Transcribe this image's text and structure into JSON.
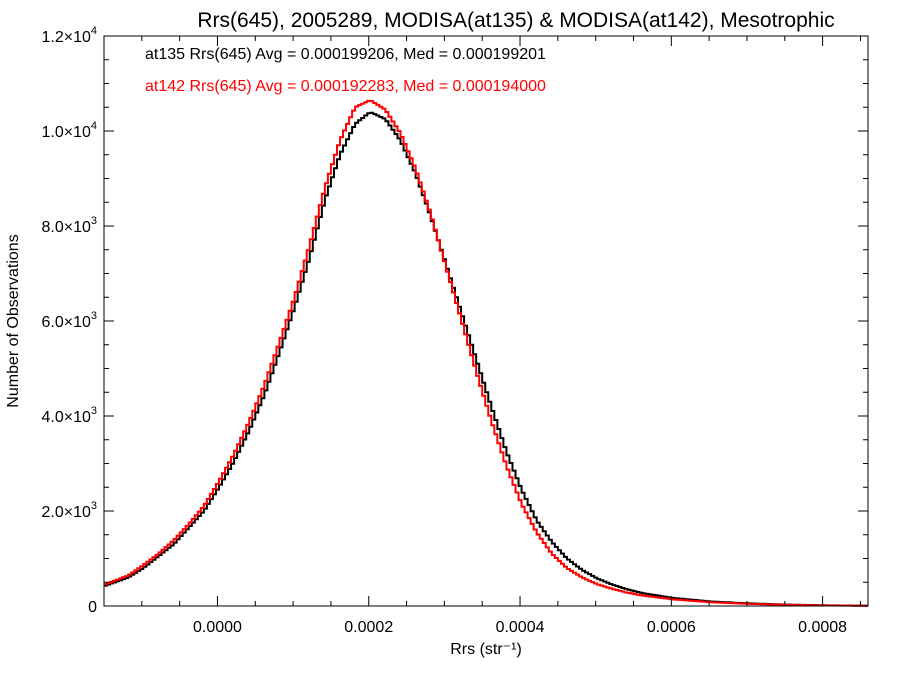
{
  "chart_data": {
    "type": "line",
    "title": "Rrs(645), 2005289, MODISA(at135) & MODISA(at142), Mesotrophic",
    "xlabel": "Rrs (str⁻¹)",
    "ylabel": "Number of Observations",
    "xlim": [
      -0.00015,
      0.00086
    ],
    "ylim": [
      0,
      12000
    ],
    "x_ticks": [
      {
        "value": 0.0,
        "label": "0.0000"
      },
      {
        "value": 0.0002,
        "label": "0.0002"
      },
      {
        "value": 0.0004,
        "label": "0.0004"
      },
      {
        "value": 0.0006,
        "label": "0.0006"
      },
      {
        "value": 0.0008,
        "label": "0.0008"
      }
    ],
    "y_ticks": [
      {
        "value": 0,
        "mant": "0",
        "exp": ""
      },
      {
        "value": 2000,
        "mant": "2.0×10",
        "exp": "3"
      },
      {
        "value": 4000,
        "mant": "4.0×10",
        "exp": "3"
      },
      {
        "value": 6000,
        "mant": "6.0×10",
        "exp": "3"
      },
      {
        "value": 8000,
        "mant": "8.0×10",
        "exp": "3"
      },
      {
        "value": 10000,
        "mant": "1.0×10",
        "exp": "4"
      },
      {
        "value": 12000,
        "mant": "1.2×10",
        "exp": "4"
      }
    ],
    "legend_position": "top-left",
    "series": [
      {
        "name": "at135",
        "color": "#000000",
        "stats_text": "at135 Rrs(645) Avg = 0.000199206, Med = 0.000199201",
        "x": [
          -0.00015,
          -0.00012,
          -0.0001,
          -8e-05,
          -6e-05,
          -4e-05,
          -2e-05,
          0.0,
          2e-05,
          4e-05,
          6e-05,
          8e-05,
          0.0001,
          0.00012,
          0.00014,
          0.00016,
          0.00018,
          0.0002,
          0.00022,
          0.00024,
          0.00026,
          0.00028,
          0.0003,
          0.00032,
          0.00034,
          0.00036,
          0.00038,
          0.0004,
          0.00042,
          0.00044,
          0.00046,
          0.00048,
          0.0005,
          0.00052,
          0.00054,
          0.00056,
          0.0006,
          0.00065,
          0.0007,
          0.00075,
          0.0008,
          0.00086
        ],
        "y": [
          430,
          600,
          800,
          1050,
          1300,
          1650,
          2000,
          2500,
          3050,
          3700,
          4450,
          5350,
          6300,
          7350,
          8550,
          9500,
          10150,
          10400,
          10250,
          9800,
          9100,
          8200,
          7200,
          6200,
          5200,
          4200,
          3250,
          2450,
          1800,
          1350,
          1000,
          760,
          580,
          450,
          350,
          270,
          170,
          95,
          55,
          30,
          15,
          5
        ]
      },
      {
        "name": "at142",
        "color": "#ff0000",
        "stats_text": "at142 Rrs(645) Avg = 0.000192283, Med = 0.000194000",
        "x": [
          -0.00015,
          -0.00012,
          -0.0001,
          -8e-05,
          -6e-05,
          -4e-05,
          -2e-05,
          0.0,
          2e-05,
          4e-05,
          6e-05,
          8e-05,
          0.0001,
          0.00012,
          0.00014,
          0.00016,
          0.00018,
          0.0002,
          0.00022,
          0.00024,
          0.00026,
          0.00028,
          0.0003,
          0.00032,
          0.00034,
          0.00036,
          0.00038,
          0.0004,
          0.00042,
          0.00044,
          0.00046,
          0.00048,
          0.0005,
          0.00052,
          0.00054,
          0.00056,
          0.0006,
          0.00065,
          0.0007,
          0.00075,
          0.0008,
          0.00086
        ],
        "y": [
          460,
          640,
          860,
          1100,
          1380,
          1720,
          2100,
          2620,
          3200,
          3880,
          4650,
          5550,
          6500,
          7600,
          8800,
          9800,
          10500,
          10650,
          10450,
          9950,
          9200,
          8250,
          7150,
          6050,
          4950,
          3900,
          2950,
          2150,
          1550,
          1100,
          800,
          600,
          460,
          360,
          280,
          220,
          140,
          80,
          45,
          25,
          12,
          4
        ]
      }
    ]
  }
}
